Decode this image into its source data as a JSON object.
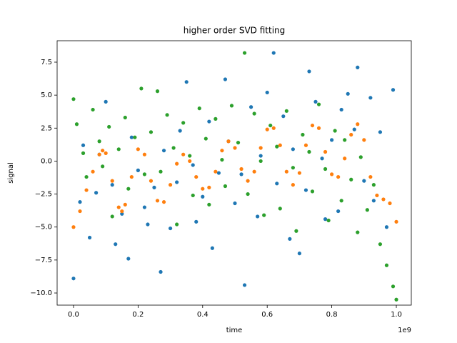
{
  "chart_data": {
    "type": "scatter",
    "title": "higher order SVD fitting",
    "x_label": "time",
    "y_label": "signal",
    "x_offset_label": "1e9",
    "xlim": [
      -0.0508,
      1.0464
    ],
    "ylim": [
      -10.92,
      9.125
    ],
    "xticks": [
      {
        "value": 0,
        "label": "0.0"
      },
      {
        "value": 0.2,
        "label": "0.2"
      },
      {
        "value": 0.4,
        "label": "0.4"
      },
      {
        "value": 0.6,
        "label": "0.6"
      },
      {
        "value": 0.8,
        "label": "0.8"
      },
      {
        "value": 1,
        "label": "1.0"
      }
    ],
    "yticks": [
      {
        "value": -10,
        "label": "−10.0"
      },
      {
        "value": -7.5,
        "label": "−7.5"
      },
      {
        "value": -5,
        "label": "−5.0"
      },
      {
        "value": -2.5,
        "label": "−2.5"
      },
      {
        "value": 0,
        "label": "0.0"
      },
      {
        "value": 2.5,
        "label": "2.5"
      },
      {
        "value": 5,
        "label": "5.0"
      },
      {
        "value": 7.5,
        "label": "7.5"
      }
    ],
    "series": [
      {
        "color": "#1f77b4",
        "x": [
          0.0,
          0.02,
          0.03,
          0.05,
          0.07,
          0.08,
          0.1,
          0.12,
          0.13,
          0.15,
          0.17,
          0.18,
          0.2,
          0.22,
          0.23,
          0.25,
          0.27,
          0.28,
          0.3,
          0.32,
          0.33,
          0.35,
          0.37,
          0.38,
          0.4,
          0.42,
          0.43,
          0.45,
          0.47,
          0.48,
          0.5,
          0.52,
          0.53,
          0.55,
          0.57,
          0.58,
          0.6,
          0.62,
          0.63,
          0.65,
          0.67,
          0.68,
          0.7,
          0.72,
          0.73,
          0.75,
          0.77,
          0.78,
          0.8,
          0.82,
          0.83,
          0.85,
          0.87,
          0.88,
          0.9,
          0.92,
          0.93,
          0.95,
          0.97,
          0.99
        ],
        "values": [
          -8.9,
          -3.1,
          1.2,
          -5.8,
          -2.4,
          0.5,
          4.5,
          -1.8,
          -6.3,
          -4.0,
          -7.4,
          1.8,
          -0.7,
          -3.5,
          -4.8,
          -2.0,
          -8.4,
          0.8,
          -5.1,
          -1.6,
          2.3,
          6.0,
          -0.3,
          -4.6,
          -2.7,
          3.0,
          -6.6,
          -0.9,
          6.2,
          1.5,
          -3.2,
          -1.0,
          -9.4,
          4.1,
          -4.2,
          0.4,
          5.2,
          8.2,
          -1.7,
          3.4,
          -5.9,
          0.9,
          -7.0,
          -2.2,
          6.8,
          4.5,
          0.2,
          -4.4,
          1.6,
          -3.8,
          3.9,
          5.1,
          2.4,
          7.1,
          -1.5,
          4.8,
          -3.0,
          2.2,
          -5.0,
          5.4
        ]
      },
      {
        "color": "#ff7f0e",
        "x": [
          0,
          0.02,
          0.04,
          0.06,
          0.08,
          0.09,
          0.1,
          0.12,
          0.14,
          0.15,
          0.16,
          0.18,
          0.2,
          0.22,
          0.24,
          0.26,
          0.28,
          0.3,
          0.32,
          0.34,
          0.36,
          0.38,
          0.4,
          0.42,
          0.44,
          0.46,
          0.48,
          0.5,
          0.52,
          0.54,
          0.56,
          0.58,
          0.6,
          0.62,
          0.64,
          0.66,
          0.68,
          0.7,
          0.72,
          0.74,
          0.76,
          0.78,
          0.8,
          0.82,
          0.84,
          0.86,
          0.88,
          0.9,
          0.92,
          0.94,
          0.96,
          0.98,
          1.0
        ],
        "values": [
          -5.0,
          -3.8,
          -2.2,
          -0.8,
          0.5,
          0.8,
          0.6,
          -1.5,
          -3.5,
          -3.8,
          -3.3,
          -1.2,
          0.9,
          0.5,
          -1.5,
          -3.0,
          -3.1,
          -1.8,
          -0.2,
          0.5,
          0.0,
          -1.2,
          -2.1,
          -2.0,
          -0.8,
          0.8,
          1.5,
          1.0,
          -0.6,
          -1.5,
          -0.8,
          1.0,
          2.4,
          2.5,
          1.2,
          -0.8,
          -1.8,
          -0.9,
          1.2,
          2.7,
          2.5,
          0.7,
          -1.0,
          -1.2,
          0.2,
          2.0,
          2.8,
          1.6,
          -1.2,
          -2.6,
          -2.9,
          -3.2,
          -4.6
        ]
      },
      {
        "color": "#2ca02c",
        "x": [
          0.0,
          0.01,
          0.03,
          0.04,
          0.06,
          0.08,
          0.09,
          0.11,
          0.12,
          0.14,
          0.16,
          0.17,
          0.19,
          0.21,
          0.22,
          0.24,
          0.26,
          0.27,
          0.29,
          0.31,
          0.32,
          0.34,
          0.36,
          0.37,
          0.39,
          0.41,
          0.42,
          0.44,
          0.46,
          0.47,
          0.49,
          0.51,
          0.53,
          0.54,
          0.56,
          0.58,
          0.59,
          0.61,
          0.63,
          0.64,
          0.66,
          0.68,
          0.69,
          0.71,
          0.73,
          0.74,
          0.76,
          0.78,
          0.79,
          0.81,
          0.83,
          0.84,
          0.86,
          0.88,
          0.89,
          0.91,
          0.93,
          0.95,
          0.97,
          0.99,
          1.0
        ],
        "values": [
          4.7,
          2.8,
          0.6,
          -1.2,
          3.9,
          1.5,
          -0.4,
          2.6,
          -4.2,
          0.9,
          3.3,
          -2.1,
          1.8,
          5.5,
          -1.0,
          2.2,
          5.3,
          -0.8,
          3.5,
          1.0,
          -4.8,
          2.9,
          0.4,
          -2.6,
          4.0,
          1.7,
          -3.3,
          3.2,
          0.1,
          -1.9,
          4.2,
          1.4,
          8.2,
          -2.5,
          3.6,
          0.0,
          -4.1,
          2.7,
          1.1,
          -3.6,
          3.8,
          -0.5,
          -5.3,
          2.0,
          0.7,
          -2.3,
          4.3,
          -0.6,
          -4.5,
          2.3,
          -3.0,
          1.6,
          -1.4,
          -5.4,
          0.3,
          -3.7,
          -1.8,
          -6.3,
          -7.9,
          -9.5,
          -10.5
        ]
      }
    ]
  }
}
